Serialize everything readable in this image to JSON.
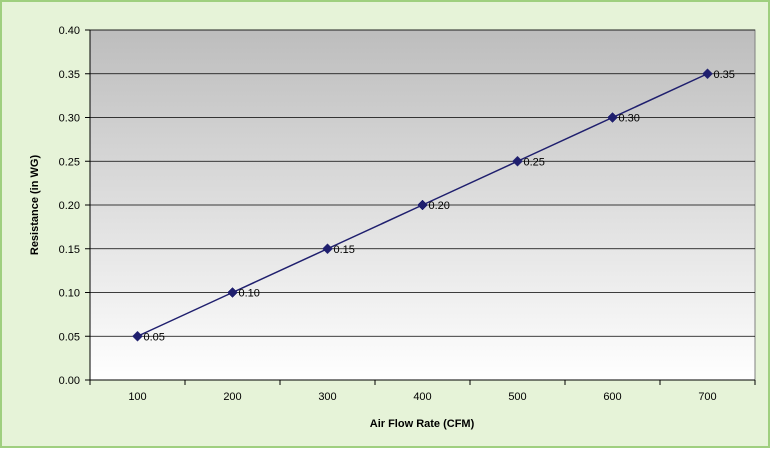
{
  "chart_data": {
    "type": "line",
    "xlabel": "Air Flow Rate (CFM)",
    "ylabel": "Resistance (in WG)",
    "categories": [
      "100",
      "200",
      "300",
      "400",
      "500",
      "600",
      "700"
    ],
    "series": [
      {
        "values": [
          0.05,
          0.1,
          0.15,
          0.2,
          0.25,
          0.3,
          0.35
        ],
        "data_labels": [
          "0.05",
          "0.10",
          "0.15",
          "0.20",
          "0.25",
          "0.30",
          "0.35"
        ],
        "color": "#1f1f6e",
        "marker": "diamond"
      }
    ],
    "ylim": [
      0,
      0.4
    ],
    "yticks": [
      "0.00",
      "0.05",
      "0.10",
      "0.15",
      "0.20",
      "0.25",
      "0.30",
      "0.35",
      "0.40"
    ],
    "grid": true,
    "legend": "none"
  },
  "colors": {
    "frame_fill": "#e6f3d8",
    "frame_border": "#9fcf7f",
    "plot_top": "#bdbdbd",
    "plot_bottom": "#ffffff",
    "line": "#1f1f6e"
  }
}
